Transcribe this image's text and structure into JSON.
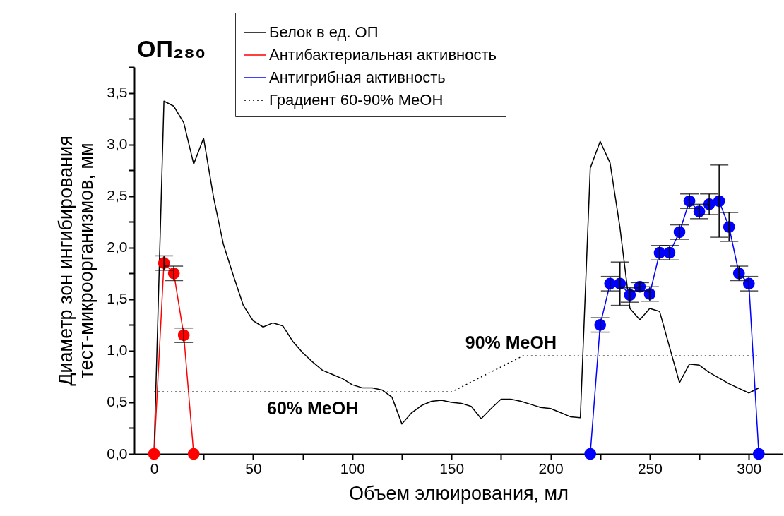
{
  "chart_data": {
    "type": "line",
    "xlabel": "Объем элюирования, мл",
    "ylabel": "Диаметр зон ингибирования\nтест-микроорганизмов, мм",
    "annotations": [
      "ОП₂₈₀",
      {
        "text": "60% MeOH",
        "x": 80,
        "y": 0.6
      },
      {
        "text": "90% MeOH",
        "x": 180,
        "y": 0.89
      }
    ],
    "xlim": [
      -10,
      317
    ],
    "ylim": [
      0,
      3.75
    ],
    "xticks": [
      0,
      {
        "value": 25,
        "label": null
      },
      50,
      {
        "value": 75,
        "label": null
      },
      100,
      {
        "value": 125,
        "label": null
      },
      150,
      {
        "value": 175,
        "label": null
      },
      200,
      {
        "value": 225,
        "label": null
      },
      250,
      {
        "value": 275,
        "label": null
      },
      300
    ],
    "yticks": [
      {
        "value": 0,
        "label": "0,0"
      },
      {
        "value": 0.25,
        "label": null
      },
      {
        "value": 0.5,
        "label": "0,5"
      },
      {
        "value": 0.75,
        "label": null
      },
      {
        "value": 1,
        "label": "1,0"
      },
      {
        "value": 1.25,
        "label": null
      },
      {
        "value": 1.5,
        "label": "1,5"
      },
      {
        "value": 1.75,
        "label": null
      },
      {
        "value": 2,
        "label": "2,0"
      },
      {
        "value": 2.25,
        "label": null
      },
      {
        "value": 2.5,
        "label": "2,5"
      },
      {
        "value": 2.75,
        "label": null
      },
      {
        "value": 3,
        "label": "3,0"
      },
      {
        "value": 3.25,
        "label": null
      },
      {
        "value": 3.5,
        "label": "3,5"
      },
      {
        "value": 3.75,
        "label": null
      }
    ],
    "grid": false,
    "legend": "top",
    "series": [
      {
        "name": "Белок в ед. ОП",
        "color": "#000000",
        "line_style": "solid",
        "marker": "none",
        "x": [
          0,
          5,
          10,
          15,
          20,
          25,
          30,
          35,
          40,
          45,
          50,
          55,
          60,
          65,
          70,
          75,
          80,
          85,
          90,
          95,
          100,
          105,
          110,
          115,
          120,
          125,
          130,
          135,
          140,
          145,
          150,
          155,
          160,
          165,
          170,
          175,
          180,
          185,
          190,
          195,
          200,
          205,
          210,
          215,
          220,
          225,
          230,
          235,
          240,
          245,
          250,
          255,
          265,
          270,
          275,
          280,
          290,
          300,
          305
        ],
        "values": [
          0,
          3.42,
          3.37,
          3.21,
          2.81,
          3.06,
          2.49,
          2.03,
          1.73,
          1.44,
          1.29,
          1.23,
          1.27,
          1.24,
          1.09,
          0.98,
          0.89,
          0.81,
          0.77,
          0.73,
          0.67,
          0.64,
          0.64,
          0.62,
          0.55,
          0.29,
          0.4,
          0.47,
          0.51,
          0.52,
          0.5,
          0.49,
          0.46,
          0.34,
          0.44,
          0.53,
          0.53,
          0.51,
          0.48,
          0.45,
          0.44,
          0.4,
          0.36,
          0.35,
          2.77,
          3.03,
          2.82,
          2.19,
          1.41,
          1.3,
          1.41,
          1.38,
          0.69,
          0.87,
          0.86,
          0.79,
          0.68,
          0.59,
          0.64
        ]
      },
      {
        "name": "Антибактериальная активность",
        "color": "#ff0000",
        "line_style": "solid",
        "marker": "circle",
        "x": [
          0,
          5,
          10,
          15,
          20
        ],
        "values": [
          0,
          1.85,
          1.75,
          1.15,
          0
        ],
        "errors": [
          null,
          0.07,
          0.07,
          0.07,
          null
        ]
      },
      {
        "name": "Антигрибная активность",
        "color": "#0000ff",
        "line_style": "solid",
        "marker": "circle",
        "x": [
          220,
          225,
          230,
          235,
          240,
          245,
          250,
          255,
          260,
          265,
          270,
          275,
          280,
          285,
          290,
          295,
          300,
          305
        ],
        "values": [
          0,
          1.25,
          1.65,
          1.65,
          1.54,
          1.62,
          1.55,
          1.95,
          1.95,
          2.15,
          2.45,
          2.35,
          2.42,
          2.45,
          2.2,
          1.75,
          1.65,
          0
        ],
        "errors": [
          null,
          0.07,
          0.07,
          0.21,
          0.07,
          0.04,
          0.07,
          0.07,
          0.07,
          0.07,
          0.07,
          0.07,
          0.1,
          0.35,
          0.14,
          0.07,
          0.07,
          null
        ]
      },
      {
        "name": "Градиент 60-90% MeOH",
        "color": "#000000",
        "line_style": "dotted",
        "marker": "none",
        "x": [
          0,
          150,
          186,
          305
        ],
        "values": [
          0.6,
          0.6,
          0.95,
          0.95
        ]
      }
    ]
  }
}
